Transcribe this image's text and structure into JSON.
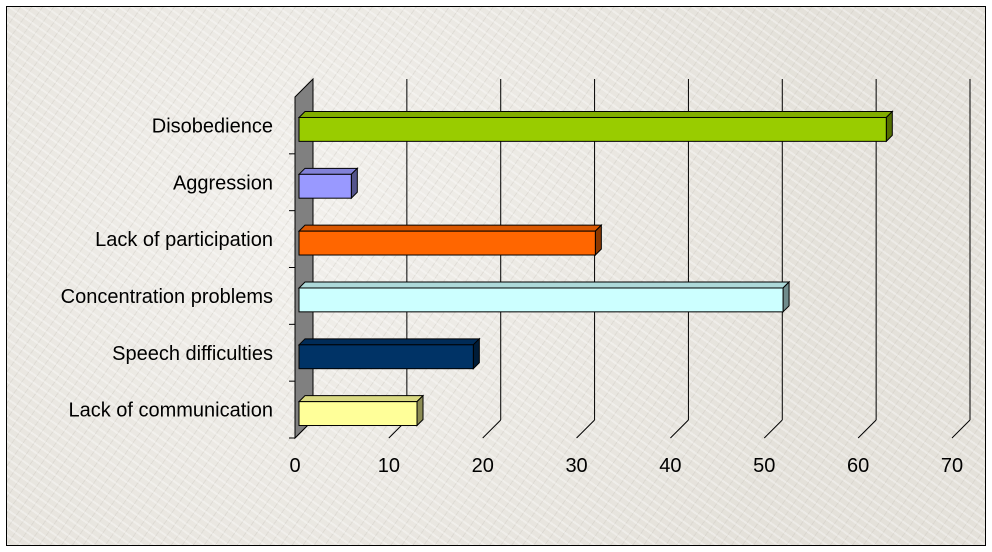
{
  "chart_data": {
    "type": "bar",
    "orientation": "horizontal",
    "style": "3d",
    "categories": [
      "Lack of communication",
      "Speech difficulties",
      "Concentration problems",
      "Lack of participation",
      "Aggression",
      "Disobedience"
    ],
    "values": [
      13,
      19,
      52,
      32,
      6,
      63
    ],
    "colors": [
      "#ffff99",
      "#003366",
      "#ccffff",
      "#ff6600",
      "#9999ff",
      "#99cc00"
    ],
    "title": "",
    "xlabel": "",
    "ylabel": "",
    "xlim": [
      0,
      70
    ],
    "xticks": [
      "0",
      "10",
      "20",
      "30",
      "40",
      "50",
      "60",
      "70"
    ],
    "grid": true,
    "legend": "none"
  }
}
